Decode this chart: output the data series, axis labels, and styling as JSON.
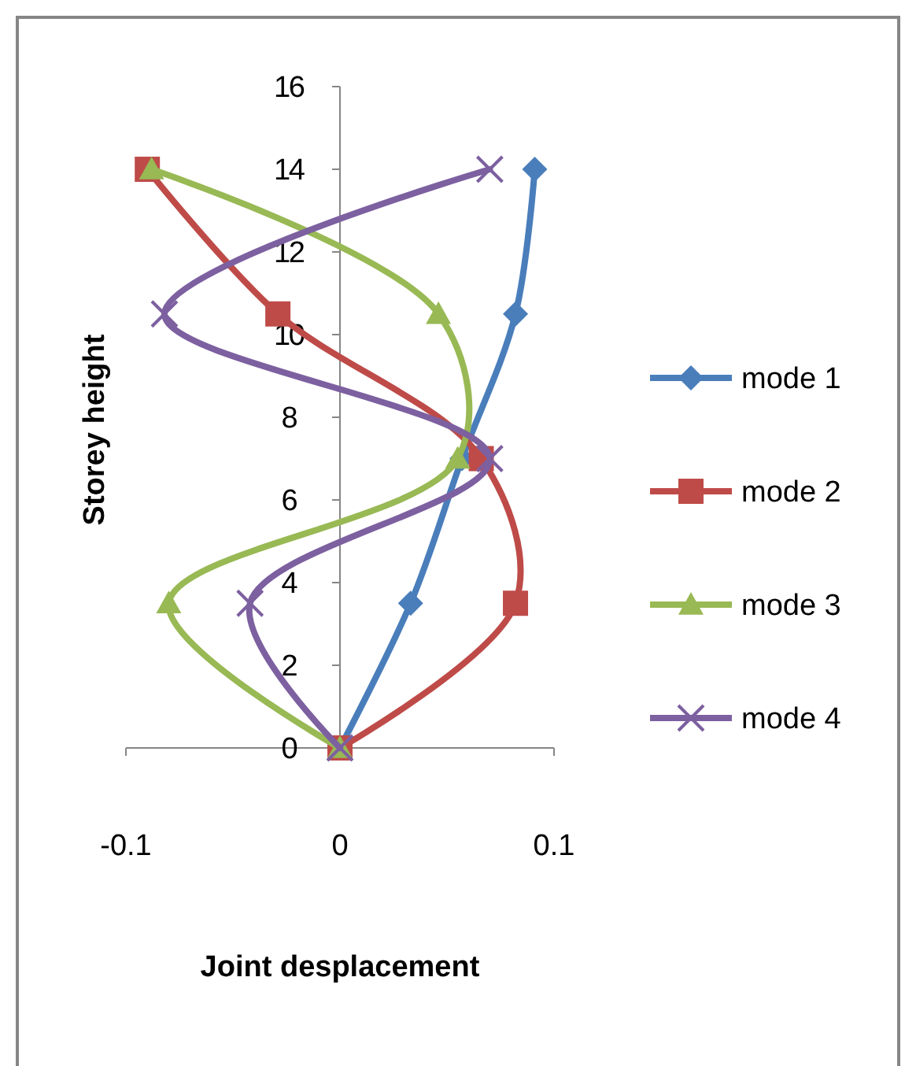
{
  "chart_data": {
    "type": "line",
    "xlabel": "Joint desplacement",
    "ylabel": "Storey height",
    "xlim": [
      -0.1,
      0.1
    ],
    "xticks": [
      -0.1,
      0,
      0.1
    ],
    "ylim": [
      0,
      16
    ],
    "yticks": [
      0,
      2,
      4,
      6,
      8,
      10,
      12,
      14,
      16
    ],
    "grid": false,
    "legend": "right",
    "line_style": "solid",
    "series": [
      {
        "name": "mode 1",
        "color": "#4a7ebb",
        "marker": "diamond",
        "x": [
          0,
          0.033,
          0.057,
          0.082,
          0.091
        ],
        "values": [
          0,
          3.5,
          7,
          10.5,
          14
        ]
      },
      {
        "name": "mode 2",
        "color": "#be4b48",
        "marker": "square",
        "x": [
          0,
          0.082,
          0.066,
          -0.029,
          -0.09
        ],
        "values": [
          0,
          3.5,
          7,
          10.5,
          14
        ]
      },
      {
        "name": "mode 3",
        "color": "#98b954",
        "marker": "triangle",
        "x": [
          0,
          -0.08,
          0.055,
          0.046,
          -0.088
        ],
        "values": [
          0,
          3.5,
          7,
          10.5,
          14
        ]
      },
      {
        "name": "mode 4",
        "color": "#7d60a0",
        "marker": "cross",
        "x": [
          0,
          -0.042,
          0.07,
          -0.082,
          0.07
        ],
        "values": [
          0,
          3.5,
          7,
          10.5,
          14
        ]
      }
    ]
  }
}
